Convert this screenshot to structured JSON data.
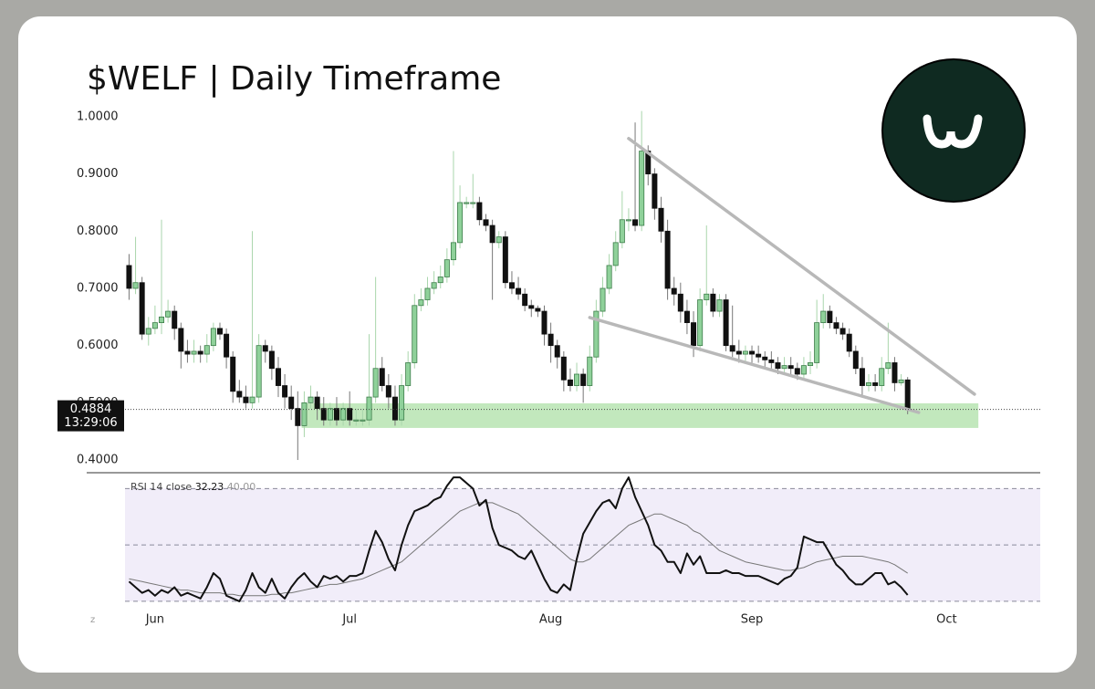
{
  "chart_data": [
    {
      "type": "candlestick",
      "title": "$WELF | Daily Timeframe",
      "x": [
        0,
        1,
        2,
        3,
        4,
        5,
        6,
        7,
        8,
        9,
        10,
        11,
        12,
        13,
        14,
        15,
        16,
        17,
        18,
        19,
        20,
        21,
        22,
        23,
        24,
        25,
        26,
        27,
        28,
        29,
        30,
        31,
        32,
        33,
        34,
        35,
        36,
        37,
        38,
        39,
        40,
        41,
        42,
        43,
        44,
        45,
        46,
        47,
        48,
        49,
        50,
        51,
        52,
        53,
        54,
        55,
        56,
        57,
        58,
        59,
        60,
        61,
        62,
        63,
        64,
        65,
        66,
        67,
        68,
        69,
        70,
        71,
        72,
        73,
        74,
        75,
        76,
        77,
        78,
        79,
        80,
        81,
        82,
        83,
        84,
        85,
        86,
        87,
        88,
        89,
        90,
        91,
        92,
        93,
        94,
        95,
        96,
        97,
        98,
        99,
        100,
        101,
        102,
        103,
        104,
        105,
        106,
        107,
        108,
        109,
        110,
        111,
        112,
        113,
        114,
        115,
        116,
        117,
        118,
        119,
        120
      ],
      "open": [
        0.74,
        0.7,
        0.71,
        0.62,
        0.63,
        0.64,
        0.65,
        0.66,
        0.63,
        0.59,
        0.585,
        0.59,
        0.585,
        0.6,
        0.63,
        0.62,
        0.58,
        0.52,
        0.51,
        0.5,
        0.51,
        0.6,
        0.59,
        0.56,
        0.53,
        0.51,
        0.49,
        0.46,
        0.5,
        0.51,
        0.49,
        0.47,
        0.49,
        0.47,
        0.49,
        0.47,
        0.47,
        0.47,
        0.51,
        0.56,
        0.53,
        0.51,
        0.47,
        0.53,
        0.57,
        0.67,
        0.68,
        0.7,
        0.71,
        0.72,
        0.75,
        0.78,
        0.85,
        0.85,
        0.85,
        0.82,
        0.81,
        0.78,
        0.79,
        0.71,
        0.7,
        0.69,
        0.67,
        0.665,
        0.66,
        0.62,
        0.6,
        0.58,
        0.54,
        0.53,
        0.55,
        0.53,
        0.58,
        0.66,
        0.7,
        0.74,
        0.78,
        0.82,
        0.82,
        0.81,
        0.94,
        0.9,
        0.84,
        0.8,
        0.7,
        0.69,
        0.66,
        0.64,
        0.6,
        0.68,
        0.69,
        0.66,
        0.68,
        0.6,
        0.59,
        0.585,
        0.59,
        0.585,
        0.58,
        0.575,
        0.57,
        0.56,
        0.565,
        0.56,
        0.55,
        0.565,
        0.57,
        0.64,
        0.66,
        0.64,
        0.63,
        0.62,
        0.59,
        0.56,
        0.53,
        0.535,
        0.53,
        0.56,
        0.57,
        0.535,
        0.54
      ],
      "high": [
        0.76,
        0.79,
        0.72,
        0.65,
        0.67,
        0.82,
        0.68,
        0.67,
        0.64,
        0.61,
        0.61,
        0.6,
        0.62,
        0.64,
        0.64,
        0.63,
        0.59,
        0.54,
        0.53,
        0.8,
        0.62,
        0.61,
        0.6,
        0.58,
        0.55,
        0.53,
        0.52,
        0.52,
        0.53,
        0.52,
        0.51,
        0.5,
        0.51,
        0.5,
        0.52,
        0.49,
        0.49,
        0.62,
        0.72,
        0.58,
        0.55,
        0.53,
        0.55,
        0.59,
        0.69,
        0.7,
        0.72,
        0.73,
        0.74,
        0.77,
        0.94,
        0.88,
        0.86,
        0.9,
        0.86,
        0.83,
        0.82,
        0.8,
        0.8,
        0.73,
        0.72,
        0.7,
        0.68,
        0.67,
        0.67,
        0.64,
        0.61,
        0.59,
        0.56,
        0.57,
        0.56,
        0.6,
        0.68,
        0.72,
        0.76,
        0.8,
        0.87,
        0.84,
        0.99,
        1.01,
        0.95,
        0.91,
        0.86,
        0.82,
        0.72,
        0.71,
        0.68,
        0.66,
        0.7,
        0.81,
        0.7,
        0.69,
        0.69,
        0.67,
        0.61,
        0.6,
        0.6,
        0.6,
        0.59,
        0.59,
        0.58,
        0.58,
        0.58,
        0.57,
        0.58,
        0.59,
        0.68,
        0.69,
        0.67,
        0.65,
        0.64,
        0.63,
        0.6,
        0.58,
        0.55,
        0.55,
        0.58,
        0.64,
        0.58,
        0.55,
        0.545
      ],
      "low": [
        0.68,
        0.69,
        0.61,
        0.6,
        0.62,
        0.62,
        0.64,
        0.61,
        0.56,
        0.57,
        0.57,
        0.57,
        0.57,
        0.59,
        0.61,
        0.56,
        0.5,
        0.5,
        0.49,
        0.49,
        0.5,
        0.57,
        0.54,
        0.51,
        0.49,
        0.47,
        0.4,
        0.44,
        0.49,
        0.47,
        0.46,
        0.46,
        0.46,
        0.46,
        0.46,
        0.46,
        0.46,
        0.46,
        0.5,
        0.52,
        0.49,
        0.46,
        0.46,
        0.52,
        0.56,
        0.66,
        0.67,
        0.69,
        0.7,
        0.71,
        0.74,
        0.77,
        0.84,
        0.84,
        0.81,
        0.8,
        0.68,
        0.77,
        0.7,
        0.69,
        0.68,
        0.66,
        0.65,
        0.65,
        0.6,
        0.57,
        0.56,
        0.52,
        0.52,
        0.52,
        0.5,
        0.52,
        0.57,
        0.65,
        0.69,
        0.73,
        0.77,
        0.8,
        0.8,
        0.8,
        0.88,
        0.82,
        0.78,
        0.68,
        0.67,
        0.64,
        0.62,
        0.58,
        0.59,
        0.67,
        0.65,
        0.65,
        0.59,
        0.58,
        0.57,
        0.57,
        0.57,
        0.57,
        0.56,
        0.56,
        0.55,
        0.55,
        0.55,
        0.54,
        0.54,
        0.55,
        0.56,
        0.63,
        0.63,
        0.62,
        0.61,
        0.58,
        0.55,
        0.51,
        0.52,
        0.52,
        0.52,
        0.55,
        0.52,
        0.53,
        0.48
      ],
      "close": [
        0.7,
        0.71,
        0.62,
        0.63,
        0.64,
        0.65,
        0.66,
        0.63,
        0.59,
        0.585,
        0.59,
        0.585,
        0.6,
        0.63,
        0.62,
        0.58,
        0.52,
        0.51,
        0.5,
        0.51,
        0.6,
        0.59,
        0.56,
        0.53,
        0.51,
        0.49,
        0.46,
        0.5,
        0.51,
        0.49,
        0.47,
        0.49,
        0.47,
        0.49,
        0.47,
        0.47,
        0.47,
        0.51,
        0.56,
        0.53,
        0.51,
        0.47,
        0.53,
        0.57,
        0.67,
        0.68,
        0.7,
        0.71,
        0.72,
        0.75,
        0.78,
        0.85,
        0.85,
        0.85,
        0.82,
        0.81,
        0.78,
        0.79,
        0.71,
        0.7,
        0.69,
        0.67,
        0.665,
        0.66,
        0.62,
        0.6,
        0.58,
        0.54,
        0.53,
        0.55,
        0.53,
        0.58,
        0.66,
        0.7,
        0.74,
        0.78,
        0.82,
        0.82,
        0.81,
        0.94,
        0.9,
        0.84,
        0.8,
        0.7,
        0.69,
        0.66,
        0.64,
        0.6,
        0.68,
        0.69,
        0.66,
        0.68,
        0.6,
        0.59,
        0.585,
        0.59,
        0.585,
        0.58,
        0.575,
        0.57,
        0.56,
        0.565,
        0.56,
        0.55,
        0.565,
        0.57,
        0.64,
        0.66,
        0.64,
        0.63,
        0.62,
        0.59,
        0.56,
        0.53,
        0.535,
        0.53,
        0.56,
        0.57,
        0.535,
        0.54,
        0.4884
      ],
      "up_color": "#8fd19a",
      "up_edge": "#3d7d4a",
      "down_color": "#111111",
      "xlim": [
        -4,
        132
      ],
      "xticks": [
        {
          "value": 4,
          "label": "Jun"
        },
        {
          "value": 34,
          "label": "Jul"
        },
        {
          "value": 65,
          "label": "Aug"
        },
        {
          "value": 96,
          "label": "Sep"
        },
        {
          "value": 126,
          "label": "Oct"
        }
      ],
      "ylim": [
        0.39,
        1.02
      ],
      "yticks": [
        {
          "value": 0.4,
          "label": "0.4000"
        },
        {
          "value": 0.5,
          "label": "0.5000"
        },
        {
          "value": 0.6,
          "label": "0.6000"
        },
        {
          "value": 0.7,
          "label": "0.7000"
        },
        {
          "value": 0.8,
          "label": "0.8000"
        },
        {
          "value": 0.9,
          "label": "0.9000"
        },
        {
          "value": 1,
          "label": "1.0000"
        }
      ],
      "price_label": {
        "value": 0.4884,
        "label": "0.4884"
      },
      "countdown": "13:29:06",
      "zone": {
        "x": [
          26.6,
          130.9
        ],
        "y": [
          0.456,
          0.499
        ],
        "color": "#b7e4b2"
      },
      "trendlines": [
        {
          "x": [
            77,
            130.3
          ],
          "y": [
            0.962,
            0.515
          ]
        },
        {
          "x": [
            71,
            121.7
          ],
          "y": [
            0.649,
            0.483
          ]
        }
      ],
      "trendline_color": "#b8b8b8"
    },
    {
      "type": "line",
      "series": [
        {
          "name": "RSI 14 close",
          "color": "#111111",
          "values": [
            37,
            35,
            33,
            34,
            32,
            34,
            33,
            35,
            32,
            33,
            32,
            31,
            35,
            40,
            38,
            32,
            31,
            30,
            34,
            40,
            35,
            33,
            38,
            33,
            31,
            35,
            38,
            40,
            37,
            35,
            39,
            38,
            39,
            37,
            39,
            39,
            40,
            48,
            55,
            51,
            45,
            41,
            50,
            57,
            62,
            63,
            64,
            66,
            67,
            71,
            74,
            74,
            72,
            70,
            64,
            66,
            56,
            50,
            49,
            48,
            46,
            45,
            48,
            43,
            38,
            34,
            33,
            36,
            34,
            45,
            54,
            58,
            62,
            65,
            66,
            63,
            70,
            74,
            67,
            62,
            57,
            50,
            48,
            44,
            44,
            40,
            47,
            43,
            46,
            40,
            40,
            40,
            41,
            40,
            40,
            39,
            39,
            39,
            38,
            37,
            36,
            38,
            39,
            42,
            53,
            52,
            51,
            51,
            47,
            43,
            41,
            38,
            36,
            36,
            38,
            40,
            40,
            36,
            37,
            35,
            32.23
          ]
        },
        {
          "color": "#777777",
          "values": [
            38,
            37.5,
            37,
            36.5,
            36,
            35.5,
            35,
            34.5,
            34,
            34,
            33.5,
            33,
            33,
            33,
            33,
            32.5,
            32.5,
            32,
            32,
            32,
            32,
            32,
            32.5,
            32.5,
            33,
            33,
            33.5,
            34,
            34.5,
            35,
            35.5,
            36,
            36,
            36.5,
            37,
            37.5,
            38,
            39,
            40,
            41,
            42,
            43,
            44,
            46,
            48,
            50,
            52,
            54,
            56,
            58,
            60,
            62,
            63,
            64,
            65,
            65,
            65,
            64,
            63,
            62,
            61,
            59,
            57,
            55,
            53,
            51,
            49,
            47,
            45,
            44,
            44,
            45,
            47,
            49,
            51,
            53,
            55,
            57,
            58,
            59,
            60,
            61,
            61,
            60,
            59,
            58,
            57,
            55,
            54,
            52,
            50,
            48,
            47,
            46,
            45,
            44,
            43.5,
            43,
            42.5,
            42,
            41.5,
            41,
            41,
            41.5,
            42,
            43,
            44,
            44.5,
            45,
            45.5,
            46,
            46,
            46,
            46,
            45.5,
            45,
            44.5,
            44,
            43,
            41.5,
            40
          ]
        }
      ],
      "last_value_labels": [
        "32.23",
        "40.00"
      ],
      "ylim": [
        29,
        75
      ],
      "levels": [
        30,
        50,
        70
      ],
      "band": [
        30,
        70
      ],
      "band_color": "#f1edf9"
    }
  ]
}
